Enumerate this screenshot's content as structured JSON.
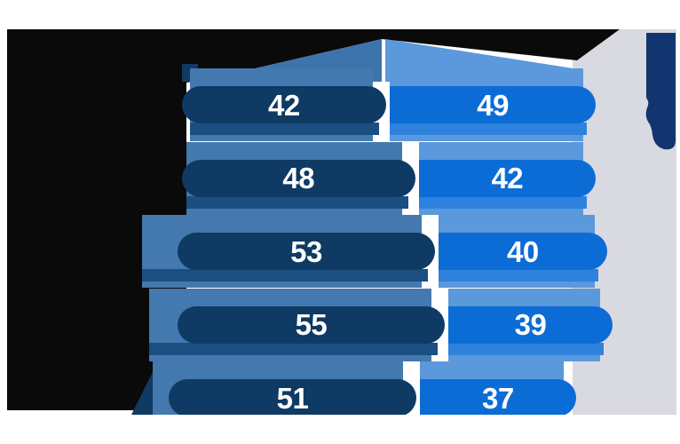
{
  "chart_data": {
    "type": "bar",
    "orientation": "horizontal-paired",
    "categories": [
      "",
      "",
      "",
      "",
      ""
    ],
    "category_labels_legible": false,
    "series": [
      {
        "name": "dark-navy-series",
        "header_text": "",
        "values": [
          42,
          48,
          53,
          55,
          51
        ]
      },
      {
        "name": "bright-blue-series",
        "header_text": "",
        "values": [
          49,
          42,
          40,
          39,
          37
        ]
      }
    ],
    "data_labels_shown": true,
    "title": "",
    "title_legible": false,
    "legend_position": "top-headers-on-banners",
    "grid": false,
    "axes_shown": false
  },
  "colors": {
    "background": "#ffffff",
    "black_shape": "#0a0a0a",
    "left_pill": "#0e3a63",
    "left_backing": "#4379ae",
    "left_shadow": "#1b4f82",
    "right_pill": "#0b6cd6",
    "right_backing": "#5b98dc",
    "right_shadow": "#2e82dd",
    "gray_panel": "#d9d9e1",
    "corner_blob": "#12356f",
    "value_text": "#ffffff"
  },
  "decor": {
    "left_banner": "medium-blue rising triangle behind left header",
    "right_banner": "light-blue descending banner behind right header",
    "corner_blob": "navy rounded blob at top-right edge"
  }
}
